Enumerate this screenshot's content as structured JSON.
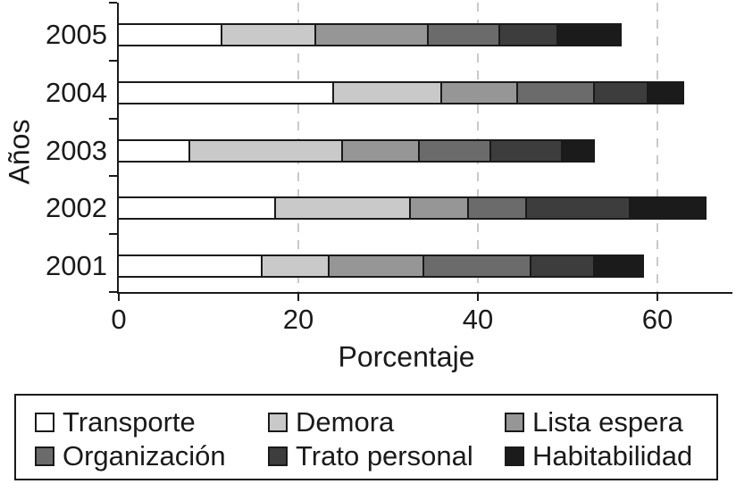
{
  "chart_data": {
    "type": "bar",
    "orientation": "horizontal",
    "stacked": true,
    "title": "",
    "xlabel": "Porcentaje",
    "ylabel": "Años",
    "categories": [
      "2005",
      "2004",
      "2003",
      "2002",
      "2001"
    ],
    "x_ticks": [
      0,
      20,
      40,
      60
    ],
    "xlim": [
      0,
      68.5
    ],
    "grid": "vertical-dashed-at-x-ticks",
    "legend_position": "bottom-boxed-3-columns",
    "series": [
      {
        "name": "Transporte",
        "color": "#ffffff",
        "values": [
          11.5,
          24,
          8,
          17.5,
          16
        ]
      },
      {
        "name": "Demora",
        "color": "#c9c9c9",
        "values": [
          10.5,
          12,
          17,
          15,
          7.5
        ]
      },
      {
        "name": "Lista espera",
        "color": "#969696",
        "values": [
          12.5,
          8.5,
          8.5,
          6.5,
          10.5
        ]
      },
      {
        "name": "Organización",
        "color": "#6b6b6b",
        "values": [
          8,
          8.5,
          8,
          6.5,
          12
        ]
      },
      {
        "name": "Trato personal",
        "color": "#3d3d3d",
        "values": [
          6.5,
          6,
          8,
          11.5,
          7
        ]
      },
      {
        "name": "Habitabilidad",
        "color": "#1b1b1b",
        "values": [
          7,
          4,
          3.5,
          8.5,
          5.5
        ]
      }
    ]
  },
  "colors": {
    "axis": "#1a1a1a",
    "gridline": "#c9c9c9",
    "background": "#ffffff",
    "legend_border": "#1a1a1a"
  }
}
